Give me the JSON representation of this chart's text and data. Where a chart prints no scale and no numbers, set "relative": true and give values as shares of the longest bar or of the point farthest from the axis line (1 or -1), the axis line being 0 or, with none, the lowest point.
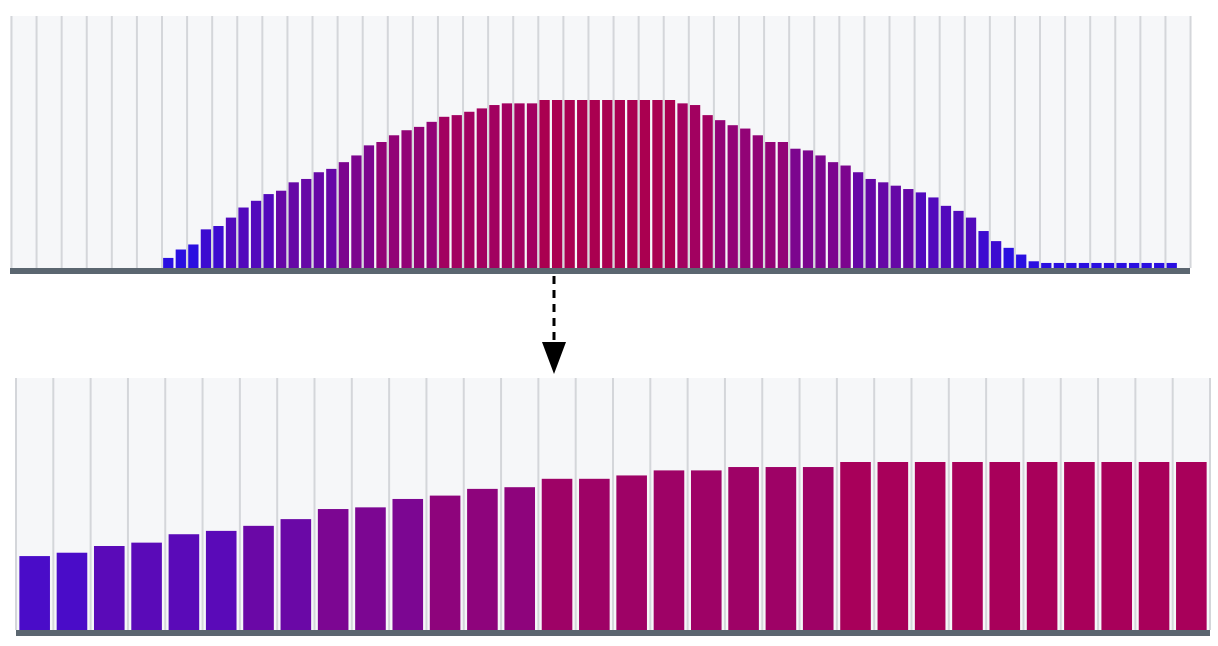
{
  "chart_data": [
    {
      "type": "bar",
      "relative": true,
      "grid": "x",
      "categories": [
        null,
        null,
        null,
        null,
        null,
        null,
        null,
        null,
        null,
        null,
        null,
        null,
        null,
        null,
        null,
        null,
        null,
        null,
        null,
        null,
        null,
        null,
        null,
        null,
        null,
        null,
        null,
        null,
        null,
        null,
        null,
        null,
        null,
        null,
        null,
        null,
        null,
        null,
        null,
        null,
        null,
        null,
        null,
        null,
        null,
        null,
        null,
        null,
        null,
        null,
        null,
        null,
        null,
        null,
        null,
        null,
        null,
        null,
        null,
        null,
        null,
        null,
        null,
        null,
        null,
        null,
        null,
        null,
        null,
        null,
        null,
        null,
        null,
        null,
        null,
        null,
        null,
        null,
        null,
        null,
        null
      ],
      "values": [
        0.06,
        0.11,
        0.14,
        0.23,
        0.25,
        0.3,
        0.36,
        0.4,
        0.44,
        0.46,
        0.51,
        0.53,
        0.57,
        0.59,
        0.63,
        0.67,
        0.73,
        0.75,
        0.79,
        0.82,
        0.84,
        0.87,
        0.9,
        0.91,
        0.93,
        0.95,
        0.97,
        0.98,
        0.98,
        0.98,
        1,
        1,
        1,
        1,
        1,
        1,
        1,
        1,
        1,
        1,
        1,
        0.98,
        0.97,
        0.91,
        0.88,
        0.85,
        0.83,
        0.79,
        0.75,
        0.75,
        0.71,
        0.7,
        0.67,
        0.63,
        0.61,
        0.57,
        0.53,
        0.51,
        0.49,
        0.47,
        0.45,
        0.42,
        0.37,
        0.34,
        0.3,
        0.22,
        0.16,
        0.12,
        0.08,
        0.04,
        0.03,
        0.03,
        0.03,
        0.03,
        0.03,
        0.03,
        0.03,
        0.03,
        0.03,
        0.03,
        0.03
      ],
      "colors": [
        "#2a0fe0",
        "#2a0fe0",
        "#2a0fe0",
        "#3d0bd0",
        "#3d0bd0",
        "#5209bc",
        "#5209bc",
        "#5209bc",
        "#5209bc",
        "#6607a6",
        "#6607a6",
        "#6607a6",
        "#6607a6",
        "#6607a6",
        "#7c058e",
        "#7c058e",
        "#7c058e",
        "#920376",
        "#920376",
        "#920376",
        "#920376",
        "#920376",
        "#a20160",
        "#a20160",
        "#a20160",
        "#a20160",
        "#a20160",
        "#a20160",
        "#a20160",
        "#a20160",
        "#aa0050",
        "#aa0050",
        "#aa0050",
        "#aa0050",
        "#aa0050",
        "#aa0050",
        "#aa0050",
        "#aa0050",
        "#aa0050",
        "#aa0050",
        "#aa0050",
        "#a20160",
        "#a20160",
        "#a20160",
        "#920376",
        "#920376",
        "#920376",
        "#920376",
        "#920376",
        "#920376",
        "#7c058e",
        "#7c058e",
        "#7c058e",
        "#7c058e",
        "#7c058e",
        "#6607a6",
        "#6607a6",
        "#6607a6",
        "#6607a6",
        "#6607a6",
        "#5209bc",
        "#5209bc",
        "#5209bc",
        "#5209bc",
        "#5209bc",
        "#3d0bd0",
        "#3d0bd0",
        "#2a0fe0",
        "#2a0fe0",
        "#2a0fe0",
        "#2a0fe0",
        "#2a0fe0",
        "#2a0fe0",
        "#2a0fe0",
        "#2a0fe0",
        "#2a0fe0",
        "#2a0fe0",
        "#2a0fe0",
        "#2a0fe0",
        "#2a0fe0",
        "#2a0fe0"
      ]
    },
    {
      "type": "bar",
      "relative": true,
      "grid": "x",
      "categories": [
        null,
        null,
        null,
        null,
        null,
        null,
        null,
        null,
        null,
        null,
        null,
        null,
        null,
        null,
        null,
        null,
        null,
        null,
        null,
        null,
        null,
        null,
        null,
        null,
        null,
        null,
        null,
        null,
        null,
        null,
        null,
        null
      ],
      "values": [
        0.44,
        0.46,
        0.5,
        0.52,
        0.57,
        0.59,
        0.62,
        0.66,
        0.72,
        0.73,
        0.78,
        0.8,
        0.84,
        0.85,
        0.9,
        0.9,
        0.92,
        0.95,
        0.95,
        0.97,
        0.97,
        0.97,
        1,
        1,
        1,
        1,
        1,
        1,
        1,
        1,
        1,
        1
      ],
      "colors": [
        "#4a0cc8",
        "#4a0cc8",
        "#5a0ab8",
        "#5a0ab8",
        "#5a0ab8",
        "#5a0ab8",
        "#6a08a6",
        "#6a08a6",
        "#7c0692",
        "#7c0692",
        "#7c0692",
        "#8e047c",
        "#8e047c",
        "#8e047c",
        "#9e0266",
        "#9e0266",
        "#9e0266",
        "#9e0266",
        "#9e0266",
        "#9e0266",
        "#9e0266",
        "#9e0266",
        "#a8005a",
        "#a8005a",
        "#a8005a",
        "#a8005a",
        "#a8005a",
        "#a8005a",
        "#a8005a",
        "#a8005a",
        "#a8005a",
        "#a8005a"
      ]
    }
  ]
}
